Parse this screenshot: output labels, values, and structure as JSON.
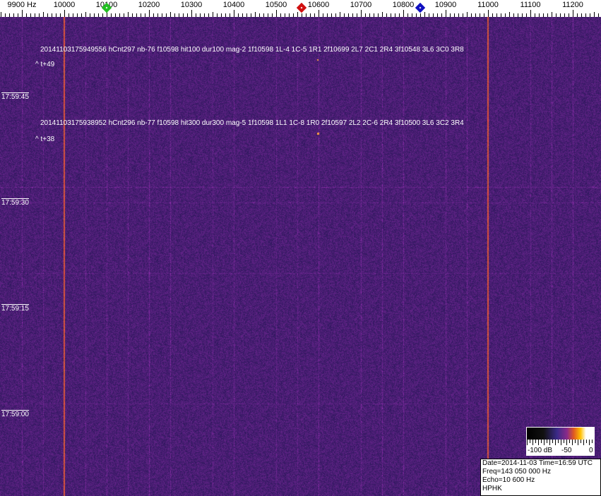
{
  "frequency_scale": {
    "labels": [
      "9900 Hz",
      "10000",
      "10100",
      "10200",
      "10300",
      "10400",
      "10500",
      "10600",
      "10700",
      "10800",
      "10900",
      "11000",
      "11100",
      "11200"
    ],
    "label_values": [
      9900,
      10000,
      10100,
      10200,
      10300,
      10400,
      10500,
      10600,
      10700,
      10800,
      10900,
      11000,
      11100,
      11200
    ]
  },
  "markers": [
    {
      "name": "green",
      "freq_hz": 10100,
      "color": "#22c022"
    },
    {
      "name": "red",
      "freq_hz": 10560,
      "color": "#d01010"
    },
    {
      "name": "blue",
      "freq_hz": 10840,
      "color": "#1010c0"
    }
  ],
  "annotations": [
    {
      "text": "20141103175949556 hCnt297 nb-76 f10598 hit100 dur100 mag-2 1f10598 1L-4 1C-5 1R1 2f10699 2L7 2C1 2R4 3f10548 3L6 3C0 3R8",
      "offset": "^ t+49"
    },
    {
      "text": "20141103175938952 hCnt296 nb-77 f10598 hit300 dur300 mag-5 1f10598 1L1 1C-8 1R0 2f10597 2L2 2C-6 2R4 3f10500 3L6 3C2 3R4",
      "offset": "^ t+38"
    }
  ],
  "time_labels": [
    "17:59:45",
    "17:59:30",
    "17:59:15",
    "17:59:00"
  ],
  "colorbar": {
    "labels": [
      "-100 dB",
      "-50",
      "0"
    ]
  },
  "info": {
    "date_time": "Date=2014-11-03 Time=16:59 UTC",
    "freq": "Freq=143 050 000 Hz",
    "echo": "Echo=10 600 Hz",
    "station": "HPHK"
  },
  "colors": {
    "background": "#2a2070",
    "carrier": "#e06040"
  }
}
